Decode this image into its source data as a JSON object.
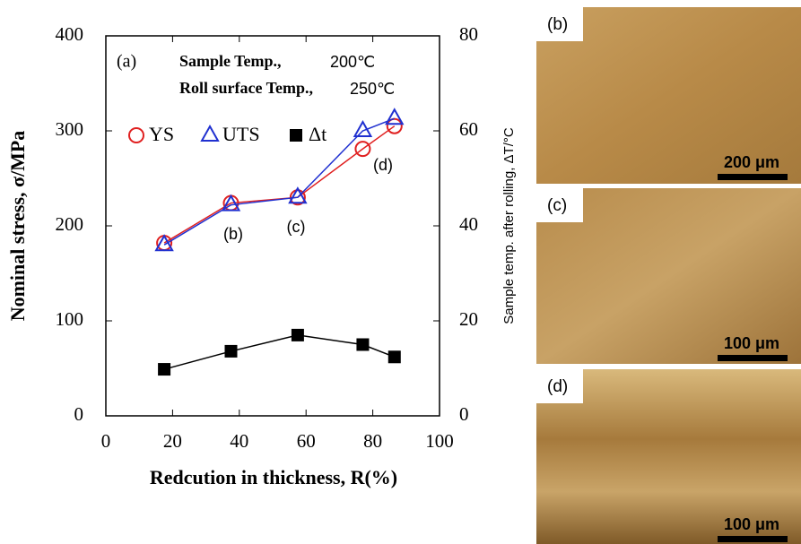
{
  "chart_data": {
    "type": "line",
    "xlabel": "Redcution in thickness, R(%)",
    "ylabel": "Nominal stress, σ/MPa",
    "y2label": "Sample temp. after rolling, ΔT/°C",
    "panel_label": "(a)",
    "condition_1": "Sample Temp.,",
    "condition_1_value": "200℃",
    "condition_2": "Roll surface Temp.,",
    "condition_2_value": "250℃",
    "point_labels": [
      "(b)",
      "(c)",
      "(d)"
    ],
    "x": [
      17.5,
      37.5,
      57.5,
      77,
      86.5
    ],
    "xlim": [
      0,
      100
    ],
    "xticks": [
      0,
      20,
      40,
      60,
      80,
      100
    ],
    "ylim": [
      0,
      400
    ],
    "yticks": [
      0,
      100,
      200,
      300,
      400
    ],
    "y2lim": [
      0,
      80
    ],
    "y2ticks": [
      0,
      20,
      40,
      60,
      80
    ],
    "legend": "top",
    "series": [
      {
        "name": "YS",
        "color": "#e02020",
        "marker": "circle",
        "values": [
          182,
          224,
          230,
          281,
          305
        ]
      },
      {
        "name": "UTS",
        "color": "#2030d0",
        "marker": "triangle",
        "values": [
          180,
          222,
          230,
          300,
          313
        ]
      },
      {
        "name": "Δt",
        "color": "#000000",
        "marker": "square",
        "axis": "y2",
        "values": [
          9.8,
          13.6,
          17,
          15,
          12.4
        ]
      }
    ]
  },
  "micrographs": [
    {
      "label": "(b)",
      "scale": "200 μm"
    },
    {
      "label": "(c)",
      "scale": "100 μm"
    },
    {
      "label": "(d)",
      "scale": "100 μm"
    }
  ]
}
